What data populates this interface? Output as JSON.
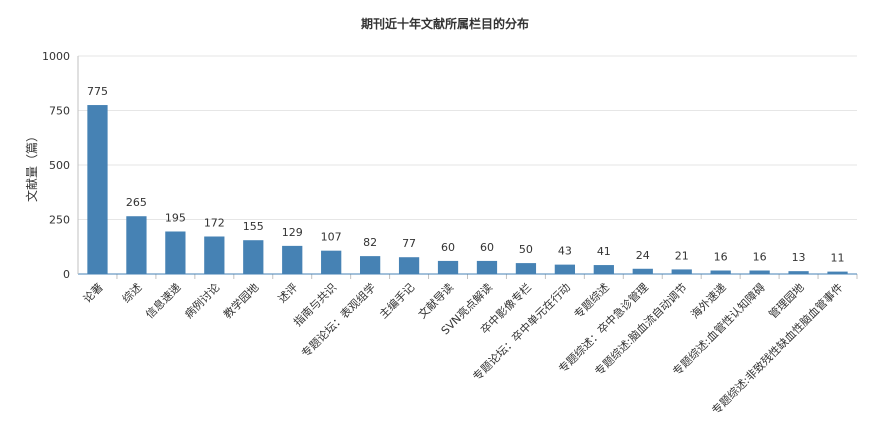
{
  "chart_data": {
    "type": "bar",
    "title": "期刊近十年文献所属栏目的分布",
    "ylabel": "文献量（篇）",
    "xlabel": "",
    "ylim": [
      0,
      1000
    ],
    "yticks": [
      0,
      250,
      500,
      750,
      1000
    ],
    "grid": true,
    "bar_color": "#4682b4",
    "categories": [
      "论著",
      "综述",
      "信息速递",
      "病例讨论",
      "教学园地",
      "述评",
      "指南与共识",
      "专题论坛：表观组学",
      "主编手记",
      "文献导读",
      "SVN亮点解读",
      "卒中影像专栏",
      "专题论坛：卒中单元在行动",
      "专题综述",
      "专题综述：卒中急诊管理",
      "专题综述:脑血流自动调节",
      "海外速递",
      "专题综述:血管性认知障碍",
      "管理园地",
      "专题综述:非致残性缺血性脑血管事件"
    ],
    "values": [
      775,
      265,
      195,
      172,
      155,
      129,
      107,
      82,
      77,
      60,
      60,
      50,
      43,
      41,
      24,
      21,
      16,
      16,
      13,
      11
    ]
  }
}
